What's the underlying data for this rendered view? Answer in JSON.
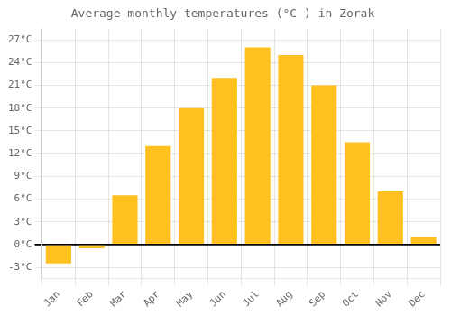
{
  "chart_data": {
    "type": "bar",
    "title": "Average monthly temperatures (°C ) in Zorak",
    "categories": [
      "Jan",
      "Feb",
      "Mar",
      "Apr",
      "May",
      "Jun",
      "Jul",
      "Aug",
      "Sep",
      "Oct",
      "Nov",
      "Dec"
    ],
    "values": [
      -2.5,
      -0.5,
      6.5,
      13.0,
      18.0,
      22.0,
      26.0,
      25.0,
      21.0,
      13.5,
      7.0,
      1.0
    ],
    "color": "#FFC020",
    "ylim": [
      -4.5,
      28.5
    ],
    "yticks": [
      {
        "value": -3,
        "label": "-3°C"
      },
      {
        "value": 0,
        "label": "0°C"
      },
      {
        "value": 3,
        "label": "3°C"
      },
      {
        "value": 6,
        "label": "6°C"
      },
      {
        "value": 9,
        "label": "9°C"
      },
      {
        "value": 12,
        "label": "12°C"
      },
      {
        "value": 15,
        "label": "15°C"
      },
      {
        "value": 18,
        "label": "18°C"
      },
      {
        "value": 21,
        "label": "21°C"
      },
      {
        "value": 24,
        "label": "24°C"
      },
      {
        "value": 27,
        "label": "27°C"
      }
    ],
    "grid": true
  }
}
